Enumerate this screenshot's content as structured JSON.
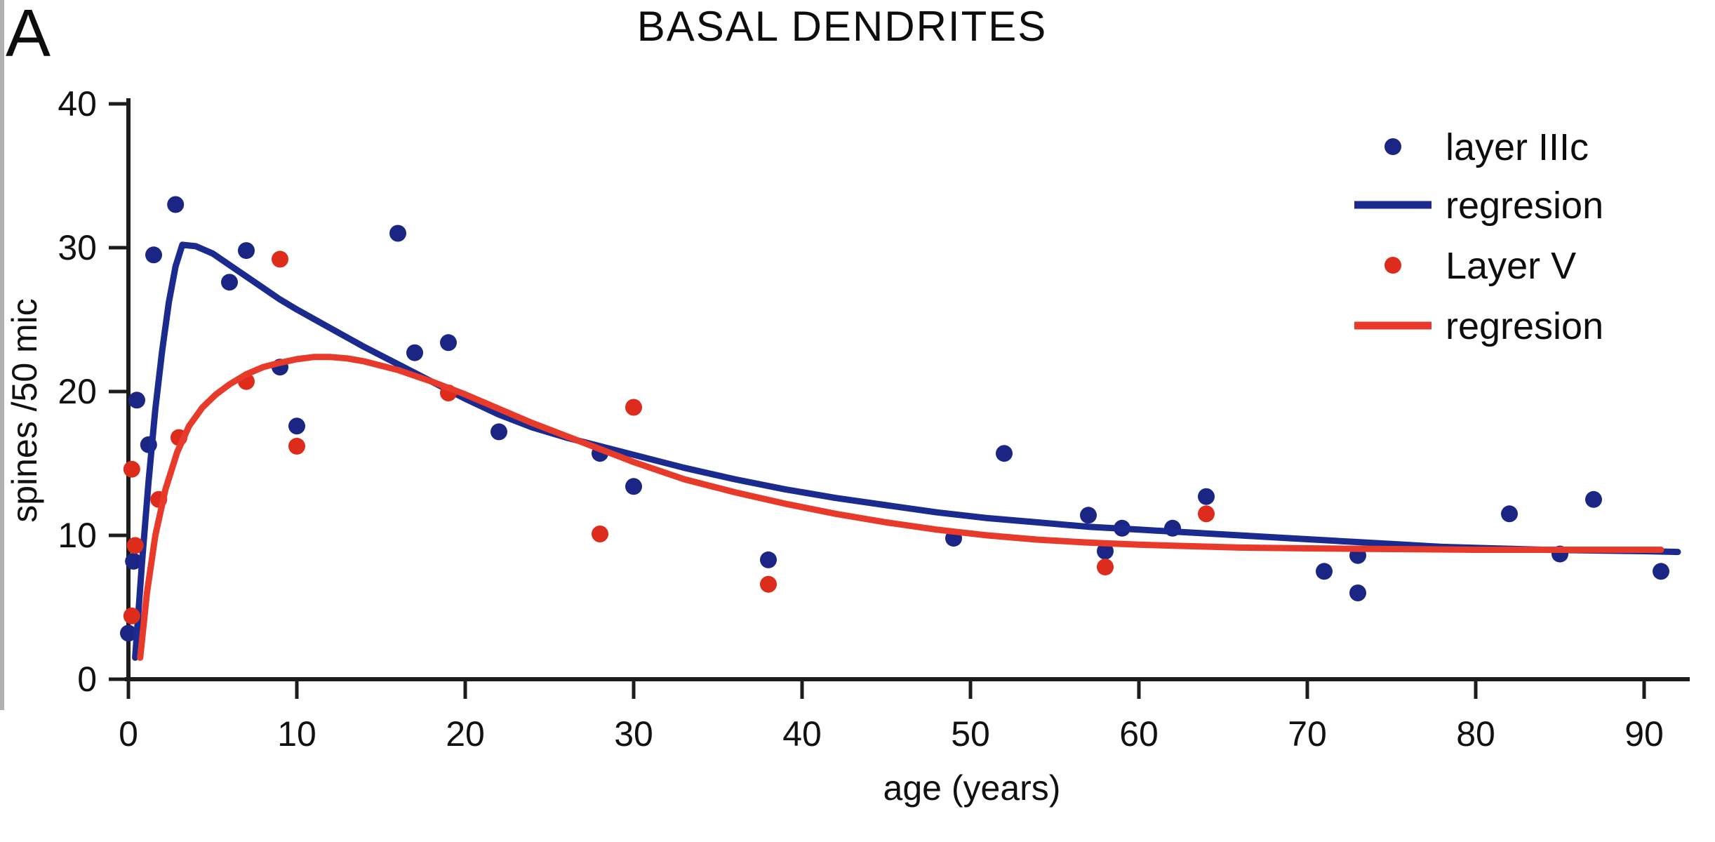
{
  "panel_label": "A",
  "colors": {
    "layer_iiic": "#1b2584",
    "layer_iiic_line": "#1b2a8e",
    "layer_v": "#dd2b1c",
    "layer_v_line": "#e83a2b",
    "axis": "#1c1c1c",
    "text": "#111111",
    "background": "#ffffff"
  },
  "chart_data": {
    "type": "scatter",
    "title": "BASAL DENDRITES",
    "xlabel": "age (years)",
    "ylabel": "spines /50 mic",
    "xlim": [
      0,
      93
    ],
    "ylim": [
      0,
      40
    ],
    "xticks": [
      0,
      10,
      20,
      30,
      40,
      50,
      60,
      70,
      80,
      90
    ],
    "yticks": [
      0,
      10,
      20,
      30,
      40
    ],
    "grid": false,
    "legend_position": "top-right",
    "legend": [
      {
        "label": "layer IIIc",
        "marker": "dot",
        "color": "#1b2584"
      },
      {
        "label": "regresion",
        "marker": "line",
        "color": "#1b2a8e"
      },
      {
        "label": "Layer V",
        "marker": "dot",
        "color": "#dd2b1c"
      },
      {
        "label": "regresion",
        "marker": "line",
        "color": "#e83a2b"
      }
    ],
    "series": [
      {
        "name": "layer IIIc",
        "kind": "scatter",
        "color": "#1b2584",
        "points": [
          [
            0,
            3.2
          ],
          [
            0.3,
            8.2
          ],
          [
            0.5,
            19.4
          ],
          [
            1.2,
            16.3
          ],
          [
            1.5,
            29.5
          ],
          [
            2.8,
            33.0
          ],
          [
            6,
            27.6
          ],
          [
            7,
            29.8
          ],
          [
            9,
            21.7
          ],
          [
            10,
            17.6
          ],
          [
            16,
            31.0
          ],
          [
            17,
            22.7
          ],
          [
            19,
            23.4
          ],
          [
            22,
            17.2
          ],
          [
            28,
            15.7
          ],
          [
            30,
            13.4
          ],
          [
            38,
            8.3
          ],
          [
            49,
            9.8
          ],
          [
            52,
            15.7
          ],
          [
            57,
            11.4
          ],
          [
            58,
            8.9
          ],
          [
            59,
            10.5
          ],
          [
            62,
            10.5
          ],
          [
            64,
            12.7
          ],
          [
            71,
            7.5
          ],
          [
            73,
            8.6
          ],
          [
            73,
            6.0
          ],
          [
            82,
            11.5
          ],
          [
            85,
            8.7
          ],
          [
            87,
            12.5
          ],
          [
            91,
            7.5
          ]
        ]
      },
      {
        "name": "regresion (layer IIIc)",
        "kind": "line",
        "color": "#1b2a8e",
        "points": [
          [
            0.4,
            1.5
          ],
          [
            0.8,
            8.0
          ],
          [
            1.2,
            13.8
          ],
          [
            1.6,
            18.8
          ],
          [
            2.0,
            22.8
          ],
          [
            2.4,
            26.2
          ],
          [
            2.8,
            28.7
          ],
          [
            3.2,
            30.2
          ],
          [
            4,
            30.1
          ],
          [
            5,
            29.6
          ],
          [
            6,
            28.8
          ],
          [
            7,
            28.0
          ],
          [
            8,
            27.2
          ],
          [
            9,
            26.4
          ],
          [
            10,
            25.7
          ],
          [
            12,
            24.4
          ],
          [
            14,
            23.1
          ],
          [
            16,
            21.9
          ],
          [
            18,
            20.7
          ],
          [
            20,
            19.5
          ],
          [
            22,
            18.4
          ],
          [
            24,
            17.5
          ],
          [
            26,
            16.8
          ],
          [
            28,
            16.2
          ],
          [
            30,
            15.6
          ],
          [
            33,
            14.7
          ],
          [
            36,
            13.9
          ],
          [
            39,
            13.2
          ],
          [
            42,
            12.6
          ],
          [
            45,
            12.1
          ],
          [
            48,
            11.6
          ],
          [
            51,
            11.2
          ],
          [
            54,
            10.9
          ],
          [
            57,
            10.6
          ],
          [
            60,
            10.4
          ],
          [
            63,
            10.2
          ],
          [
            66,
            10.0
          ],
          [
            69,
            9.8
          ],
          [
            72,
            9.6
          ],
          [
            75,
            9.4
          ],
          [
            78,
            9.2
          ],
          [
            81,
            9.1
          ],
          [
            84,
            9.0
          ],
          [
            87,
            8.95
          ],
          [
            90,
            8.9
          ],
          [
            92,
            8.85
          ]
        ]
      },
      {
        "name": "Layer V",
        "kind": "scatter",
        "color": "#dd2b1c",
        "points": [
          [
            0.2,
            4.4
          ],
          [
            0.4,
            9.3
          ],
          [
            0.2,
            14.6
          ],
          [
            1.8,
            12.5
          ],
          [
            3,
            16.8
          ],
          [
            7,
            20.7
          ],
          [
            9,
            29.2
          ],
          [
            10,
            16.2
          ],
          [
            19,
            19.9
          ],
          [
            28,
            10.1
          ],
          [
            30,
            18.9
          ],
          [
            38,
            6.6
          ],
          [
            58,
            7.8
          ],
          [
            64,
            11.5
          ]
        ]
      },
      {
        "name": "regresion (Layer V)",
        "kind": "line",
        "color": "#e83a2b",
        "points": [
          [
            0.7,
            1.5
          ],
          [
            1.1,
            6.0
          ],
          [
            1.6,
            10.0
          ],
          [
            2.2,
            13.2
          ],
          [
            2.9,
            15.8
          ],
          [
            3.6,
            17.6
          ],
          [
            4.4,
            18.9
          ],
          [
            5.2,
            19.8
          ],
          [
            6,
            20.5
          ],
          [
            7,
            21.2
          ],
          [
            8,
            21.7
          ],
          [
            9,
            22.0
          ],
          [
            10,
            22.25
          ],
          [
            11,
            22.4
          ],
          [
            12,
            22.4
          ],
          [
            13,
            22.3
          ],
          [
            14,
            22.1
          ],
          [
            16,
            21.5
          ],
          [
            18,
            20.7
          ],
          [
            20,
            19.8
          ],
          [
            22,
            18.8
          ],
          [
            24,
            17.8
          ],
          [
            26,
            16.9
          ],
          [
            28,
            16.0
          ],
          [
            30,
            15.1
          ],
          [
            33,
            13.9
          ],
          [
            36,
            13.0
          ],
          [
            39,
            12.2
          ],
          [
            42,
            11.5
          ],
          [
            45,
            10.9
          ],
          [
            48,
            10.4
          ],
          [
            51,
            10.0
          ],
          [
            54,
            9.7
          ],
          [
            57,
            9.5
          ],
          [
            60,
            9.35
          ],
          [
            63,
            9.25
          ],
          [
            66,
            9.15
          ],
          [
            70,
            9.1
          ],
          [
            75,
            9.05
          ],
          [
            80,
            9.0
          ],
          [
            85,
            9.0
          ],
          [
            91,
            9.0
          ]
        ]
      }
    ]
  }
}
